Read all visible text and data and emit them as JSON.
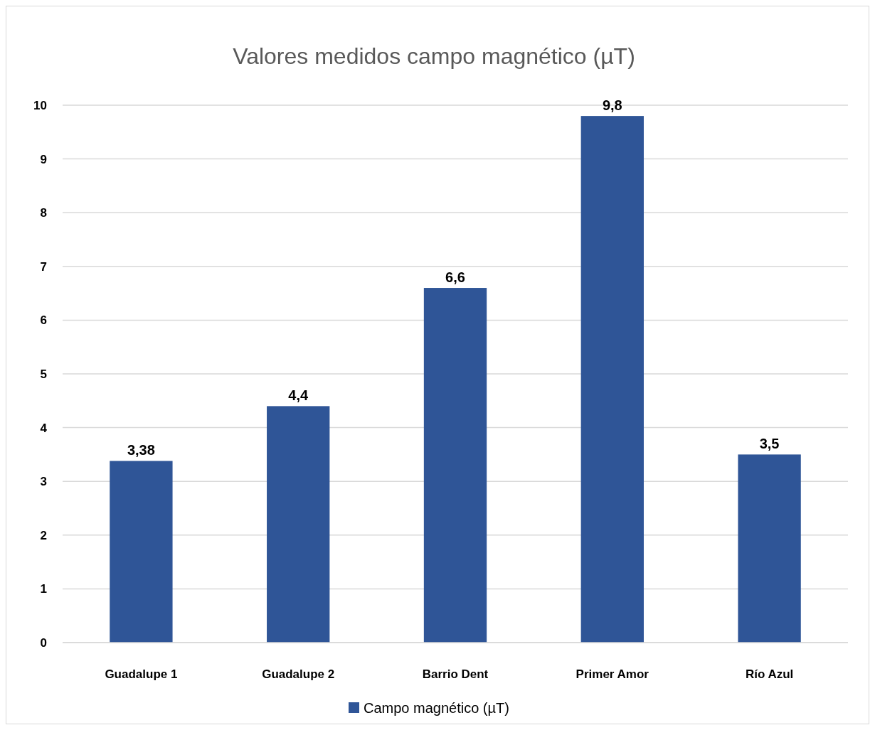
{
  "chart_data": {
    "type": "bar",
    "title": "Valores medidos campo magnético (µT)",
    "categories": [
      "Guadalupe 1",
      "Guadalupe 2",
      "Barrio Dent",
      "Primer Amor",
      "Río Azul"
    ],
    "series": [
      {
        "name": "Campo magnético (µT)",
        "color": "#2f5597",
        "values": [
          3.38,
          4.4,
          6.6,
          9.8,
          3.5
        ],
        "value_labels": [
          "3,38",
          "4,4",
          "6,6",
          "9,8",
          "3,5"
        ]
      }
    ],
    "ylim": [
      0,
      10
    ],
    "yticks": [
      0,
      1,
      2,
      3,
      4,
      5,
      6,
      7,
      8,
      9,
      10
    ],
    "grid": "y",
    "legend": "bottom"
  }
}
